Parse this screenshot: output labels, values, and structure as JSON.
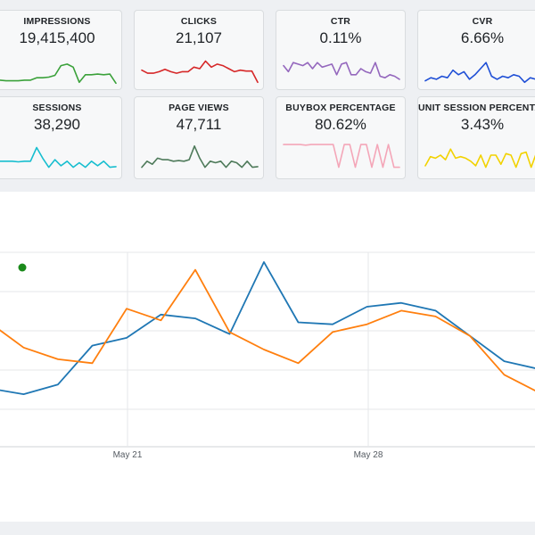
{
  "kpis": [
    {
      "title": "IMPRESSIONS",
      "value": "19,415,400",
      "color": "#3aa13a",
      "spark": [
        0.12,
        0.1,
        0.1,
        0.1,
        0.12,
        0.12,
        0.2,
        0.2,
        0.22,
        0.28,
        0.6,
        0.65,
        0.55,
        0.05,
        0.3,
        0.3,
        0.32,
        0.3,
        0.32,
        0.02
      ]
    },
    {
      "title": "CLICKS",
      "value": "21,107",
      "color": "#d62728",
      "spark": [
        0.45,
        0.35,
        0.35,
        0.4,
        0.48,
        0.4,
        0.35,
        0.4,
        0.4,
        0.55,
        0.5,
        0.75,
        0.55,
        0.65,
        0.6,
        0.5,
        0.4,
        0.45,
        0.42,
        0.42,
        0.05
      ]
    },
    {
      "title": "CTR",
      "value": "0.11%",
      "color": "#9467bd",
      "spark": [
        0.6,
        0.4,
        0.7,
        0.65,
        0.6,
        0.7,
        0.5,
        0.7,
        0.55,
        0.6,
        0.65,
        0.3,
        0.65,
        0.7,
        0.3,
        0.3,
        0.5,
        0.4,
        0.35,
        0.7,
        0.25,
        0.2,
        0.3,
        0.25,
        0.15
      ]
    },
    {
      "title": "CVR",
      "value": "6.66%",
      "color": "#1f4fd6",
      "spark": [
        0.1,
        0.2,
        0.15,
        0.25,
        0.2,
        0.45,
        0.3,
        0.4,
        0.15,
        0.3,
        0.5,
        0.7,
        0.25,
        0.15,
        0.25,
        0.2,
        0.3,
        0.25,
        0.05,
        0.2,
        0.15,
        0.1
      ]
    },
    {
      "title": "SESSIONS",
      "value": "38,290",
      "color": "#17becf",
      "spark": [
        0.3,
        0.3,
        0.3,
        0.28,
        0.3,
        0.3,
        0.75,
        0.4,
        0.1,
        0.35,
        0.15,
        0.3,
        0.1,
        0.25,
        0.1,
        0.3,
        0.15,
        0.3,
        0.1,
        0.12
      ]
    },
    {
      "title": "PAGE VIEWS",
      "value": "47,711",
      "color": "#4e7a5a",
      "spark": [
        0.1,
        0.3,
        0.2,
        0.4,
        0.35,
        0.35,
        0.3,
        0.32,
        0.3,
        0.35,
        0.8,
        0.4,
        0.1,
        0.3,
        0.25,
        0.3,
        0.1,
        0.3,
        0.25,
        0.1,
        0.3,
        0.1,
        0.12
      ]
    },
    {
      "title": "BUYBOX PERCENTAGE",
      "value": "80.62%",
      "color": "#f4a6b8",
      "spark": [
        0.85,
        0.85,
        0.85,
        0.85,
        0.83,
        0.85,
        0.85,
        0.85,
        0.85,
        0.85,
        0.1,
        0.85,
        0.85,
        0.1,
        0.85,
        0.85,
        0.1,
        0.85,
        0.1,
        0.85,
        0.1,
        0.1
      ]
    },
    {
      "title": "UNIT SESSION PERCENTAGE",
      "value": "3.43%",
      "color": "#f2d200",
      "spark": [
        0.15,
        0.45,
        0.4,
        0.5,
        0.35,
        0.7,
        0.4,
        0.45,
        0.4,
        0.3,
        0.15,
        0.5,
        0.1,
        0.5,
        0.5,
        0.2,
        0.55,
        0.5,
        0.1,
        0.55,
        0.6,
        0.1,
        0.55,
        0.1
      ]
    }
  ],
  "chart_data": {
    "type": "line",
    "x_tick_labels": [
      "May 21",
      "May 28"
    ],
    "series": [
      {
        "color": "#1f77b4",
        "values": [
          0.3,
          0.27,
          0.32,
          0.52,
          0.56,
          0.68,
          0.66,
          0.58,
          0.95,
          0.64,
          0.63,
          0.72,
          0.74,
          0.7,
          0.57,
          0.44,
          0.4
        ]
      },
      {
        "color": "#ff7f0e",
        "values": [
          0.64,
          0.51,
          0.45,
          0.43,
          0.71,
          0.65,
          0.91,
          0.59,
          0.5,
          0.43,
          0.59,
          0.63,
          0.7,
          0.67,
          0.57,
          0.37,
          0.28
        ]
      }
    ],
    "marker_color": "#1a8a1a",
    "grid": true
  }
}
